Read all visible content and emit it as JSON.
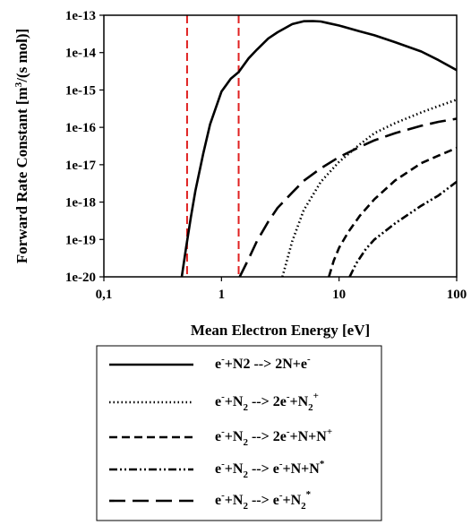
{
  "chart_data": {
    "type": "line",
    "xlabel": "Mean Electron Energy [eV]",
    "ylabel_parts": [
      "Forward Rate Constant [m",
      "3",
      "/(s mol)]"
    ],
    "x_scale": "log",
    "y_scale": "log",
    "xlim": [
      0.1,
      100
    ],
    "ylim": [
      1e-20,
      1e-13
    ],
    "x_ticks": [
      0.1,
      1,
      10,
      100
    ],
    "x_tick_labels": [
      "0,1",
      "1",
      "10",
      "100"
    ],
    "y_ticks": [
      1e-13,
      1e-14,
      1e-15,
      1e-16,
      1e-17,
      1e-18,
      1e-19,
      1e-20
    ],
    "y_tick_labels": [
      "1e-13",
      "1e-14",
      "1e-15",
      "1e-16",
      "1e-17",
      "1e-18",
      "1e-19",
      "1e-20"
    ],
    "grid": false,
    "legend_position": "below",
    "vertical_lines": [
      {
        "x": 0.51,
        "color": "#e02020"
      },
      {
        "x": 1.4,
        "color": "#e02020"
      }
    ],
    "series": [
      {
        "style": "solid",
        "legend_parts": [
          [
            "e",
            ""
          ],
          [
            "-",
            "sup"
          ],
          [
            "+N",
            ""
          ],
          [
            "2",
            ""
          ],
          [
            " --> 2N+e",
            ""
          ],
          [
            "-",
            "sup"
          ]
        ],
        "x": [
          0.46,
          0.5,
          0.55,
          0.6,
          0.7,
          0.8,
          1.0,
          1.2,
          1.4,
          1.7,
          2.0,
          2.5,
          3.0,
          4.0,
          5.0,
          6.0,
          7.0,
          8.0,
          10,
          15,
          20,
          30,
          50,
          70,
          100
        ],
        "y": [
          1e-20,
          6e-20,
          4e-19,
          2e-18,
          2e-17,
          1.2e-16,
          9e-16,
          2e-15,
          3e-15,
          7e-15,
          1.2e-14,
          2.4e-14,
          3.5e-14,
          5.8e-14,
          6.9e-14,
          7e-14,
          6.8e-14,
          6.2e-14,
          5.3e-14,
          3.7e-14,
          2.9e-14,
          1.9e-14,
          1.07e-14,
          6.3e-15,
          3.4e-15
        ]
      },
      {
        "style": "dotted",
        "legend_parts": [
          [
            "e",
            ""
          ],
          [
            "-",
            "sup"
          ],
          [
            "+N",
            ""
          ],
          [
            "2",
            "sub"
          ],
          [
            " --> 2e",
            ""
          ],
          [
            "-",
            "sup"
          ],
          [
            "+N",
            ""
          ],
          [
            "2",
            "sub"
          ],
          [
            "+",
            "sup"
          ]
        ],
        "x": [
          3.3,
          4,
          5,
          7,
          10,
          15,
          20,
          30,
          50,
          70,
          100
        ],
        "y": [
          1e-20,
          9e-20,
          6e-19,
          3.5e-18,
          1.2e-17,
          3.5e-17,
          7e-17,
          1.3e-16,
          2.5e-16,
          3.7e-16,
          5.5e-16
        ]
      },
      {
        "style": "short-dash",
        "legend_parts": [
          [
            "e",
            ""
          ],
          [
            "-",
            "sup"
          ],
          [
            "+N",
            ""
          ],
          [
            "2",
            "sub"
          ],
          [
            " --> 2e",
            ""
          ],
          [
            "-",
            "sup"
          ],
          [
            "+N+N",
            ""
          ],
          [
            "+",
            "sup"
          ]
        ],
        "x": [
          8.2,
          9,
          10,
          12,
          15,
          20,
          30,
          50,
          70,
          100
        ],
        "y": [
          1e-20,
          2.7e-20,
          6e-20,
          1.6e-19,
          4.3e-19,
          1.2e-18,
          3.8e-18,
          1.1e-17,
          1.75e-17,
          2.8e-17
        ]
      },
      {
        "style": "dash-dot-dot",
        "legend_parts": [
          [
            "e",
            ""
          ],
          [
            "-",
            "sup"
          ],
          [
            "+N",
            ""
          ],
          [
            "2",
            "sub"
          ],
          [
            " --> e",
            ""
          ],
          [
            "-",
            "sup"
          ],
          [
            "+N+N",
            ""
          ],
          [
            "*",
            "sup"
          ]
        ],
        "x": [
          12.3,
          14,
          17,
          20,
          30,
          50,
          70,
          100
        ],
        "y": [
          1e-20,
          2.3e-20,
          5.7e-20,
          1e-19,
          2.7e-19,
          8e-19,
          1.5e-18,
          3.5e-18
        ]
      },
      {
        "style": "long-dash",
        "legend_parts": [
          [
            "e",
            ""
          ],
          [
            "-",
            "sup"
          ],
          [
            "+N",
            ""
          ],
          [
            "2",
            "sub"
          ],
          [
            " --> e",
            ""
          ],
          [
            "-",
            "sup"
          ],
          [
            "+N",
            ""
          ],
          [
            "2",
            "sub"
          ],
          [
            "*",
            "sup"
          ]
        ],
        "x": [
          1.43,
          1.7,
          2,
          2.5,
          3,
          4,
          5,
          7,
          10,
          15,
          20,
          30,
          50,
          70,
          100
        ],
        "y": [
          1e-20,
          3e-20,
          9e-20,
          3e-19,
          7e-19,
          1.8e-18,
          3.7e-18,
          8e-18,
          1.6e-17,
          3e-17,
          4.5e-17,
          7e-17,
          1.1e-16,
          1.4e-16,
          1.7e-16
        ]
      }
    ]
  }
}
